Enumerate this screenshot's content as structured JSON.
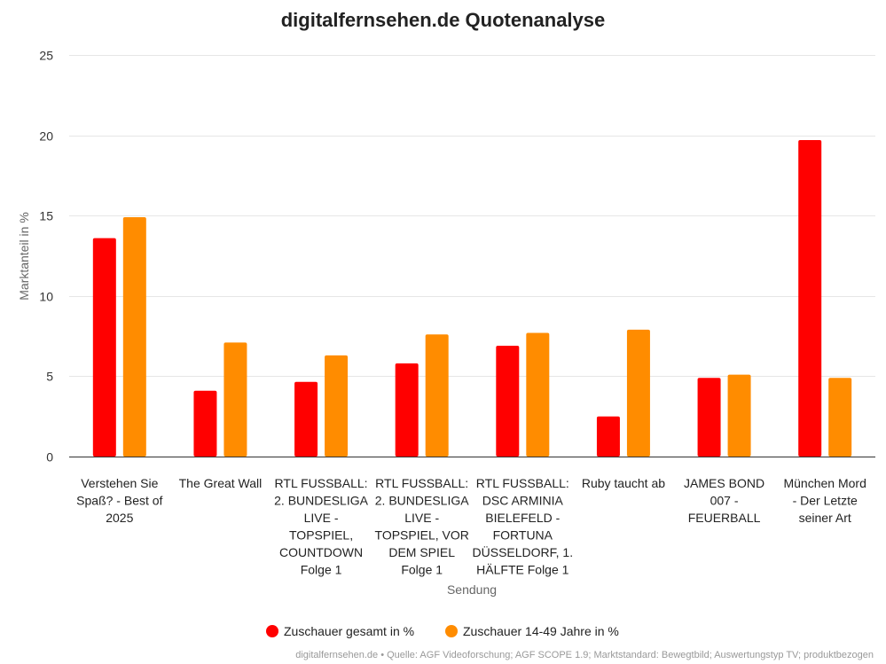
{
  "chart_data": {
    "type": "bar",
    "title": "digitalfernsehen.de Quotenanalyse",
    "xlabel": "Sendung",
    "ylabel": "Marktanteil in %",
    "ylim": [
      0,
      25
    ],
    "yticks": [
      0,
      5,
      10,
      15,
      20,
      25
    ],
    "grid": true,
    "legend_position": "bottom-center",
    "categories": [
      [
        "Verstehen Sie",
        "Spaß? - Best of",
        "2025"
      ],
      [
        "The Great Wall"
      ],
      [
        "RTL FUSSBALL:",
        "2. BUNDESLIGA",
        "LIVE -",
        "TOPSPIEL,",
        "COUNTDOWN",
        "Folge 1"
      ],
      [
        "RTL FUSSBALL:",
        "2. BUNDESLIGA",
        "LIVE -",
        "TOPSPIEL, VOR",
        "DEM SPIEL",
        "Folge 1"
      ],
      [
        "RTL FUSSBALL:",
        "DSC ARMINIA",
        "BIELEFELD -",
        "FORTUNA",
        "DÜSSELDORF, 1.",
        "HÄLFTE Folge 1"
      ],
      [
        "Ruby taucht ab"
      ],
      [
        "JAMES BOND",
        "007 -",
        "FEUERBALL"
      ],
      [
        "München Mord",
        "- Der Letzte",
        "seiner Art"
      ]
    ],
    "series": [
      {
        "name": "Zuschauer gesamt in %",
        "color": "#ff0000",
        "values": [
          13.6,
          4.1,
          4.65,
          5.8,
          6.9,
          2.5,
          4.9,
          19.7
        ]
      },
      {
        "name": "Zuschauer 14-49 Jahre in %",
        "color": "#ff8c00",
        "values": [
          14.9,
          7.1,
          6.3,
          7.6,
          7.7,
          7.9,
          5.1,
          4.9
        ]
      }
    ],
    "credits": "digitalfernsehen.de • Quelle: AGF Videoforschung; AGF SCOPE 1.9; Marktstandard: Bewegtbild; Auswertungstyp TV; produktbezogen"
  }
}
